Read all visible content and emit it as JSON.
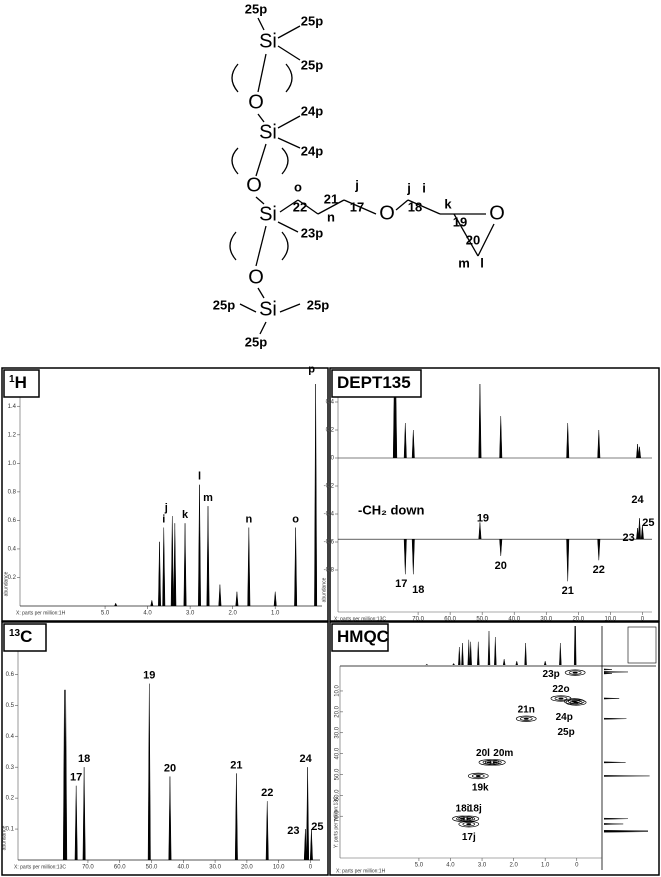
{
  "structure": {
    "labels": [
      "25p",
      "Si",
      "25p",
      "25p",
      "O",
      "Si",
      "24p",
      "24p",
      "O",
      "Si",
      "23p",
      "o",
      "22",
      "21",
      "n",
      "j",
      "17",
      "O",
      "j",
      "i",
      "18",
      "k",
      "19",
      "O",
      "20",
      "m",
      "l",
      "O",
      "Si",
      "25p",
      "25p",
      "25p"
    ]
  },
  "panels": {
    "h1": {
      "type": "spectrum",
      "title_sup": "1",
      "title": "H",
      "x_label": "X: parts per million:1H",
      "y_label": "abundance",
      "xlim": [
        7.0,
        -0.1
      ],
      "ylim": [
        0,
        1.5
      ],
      "xticks": [
        {
          "value": 5,
          "label": "5.0"
        },
        {
          "value": 4,
          "label": "4.0"
        },
        {
          "value": 3,
          "label": "3.0"
        },
        {
          "value": 2,
          "label": "2.0"
        },
        {
          "value": 1,
          "label": "1.0"
        }
      ],
      "yticks": [
        0.2,
        0.4,
        0.6,
        0.8,
        {
          "value": 1,
          "label": "1.0"
        },
        1.2,
        1.4
      ],
      "traces": [
        {
          "baseline": 0,
          "peaks": [
            {
              "ppm": 4.75,
              "height": 0.02
            },
            {
              "ppm": 3.9,
              "height": 0.04
            },
            {
              "ppm": 3.72,
              "height": 0.45
            },
            {
              "ppm": 3.62,
              "height": 0.55,
              "label": "i"
            },
            {
              "ppm": 3.42,
              "height": 0.63,
              "label": "j"
            },
            {
              "ppm": 3.36,
              "height": 0.58
            },
            {
              "ppm": 3.12,
              "height": 0.58,
              "label": "k"
            },
            {
              "ppm": 2.78,
              "height": 0.85,
              "label": "l"
            },
            {
              "ppm": 2.58,
              "height": 0.7,
              "label": "m"
            },
            {
              "ppm": 2.3,
              "height": 0.15
            },
            {
              "ppm": 1.9,
              "height": 0.1
            },
            {
              "ppm": 1.62,
              "height": 0.55,
              "label": "n"
            },
            {
              "ppm": 1.0,
              "height": 0.1
            },
            {
              "ppm": 0.52,
              "height": 0.55,
              "label": "o"
            },
            {
              "ppm": 0.05,
              "height": 1.6,
              "label": "p"
            }
          ]
        }
      ]
    },
    "dept": {
      "type": "spectrum",
      "title": "DEPT135",
      "x_label": "X: parts per million:13C",
      "y_label": "abundance",
      "annotation": "-CH₂ down",
      "xlim": [
        95,
        -3
      ],
      "ylim": [
        -1.1,
        0.5
      ],
      "xticks": [
        {
          "value": 70,
          "label": "70.0"
        },
        {
          "value": 60,
          "label": "60.0"
        },
        {
          "value": 50,
          "label": "50.0"
        },
        {
          "value": 40,
          "label": "40.0"
        },
        {
          "value": 30,
          "label": "30.0"
        },
        {
          "value": 20,
          "label": "20.0"
        },
        {
          "value": 10,
          "label": "10.0"
        },
        0
      ],
      "yticks": [
        0.4,
        0.2,
        0,
        -0.2,
        -0.4,
        -0.6,
        -0.8
      ],
      "traces": [
        {
          "baseline": 0,
          "peaks": [
            {
              "ppm": 77.4,
              "height": 0.6
            },
            {
              "ppm": 77.0,
              "height": 0.6
            },
            {
              "ppm": 74.0,
              "height": 0.25
            },
            {
              "ppm": 71.5,
              "height": 0.2
            },
            {
              "ppm": 50.7,
              "height": 0.55
            },
            {
              "ppm": 44.2,
              "height": 0.3
            },
            {
              "ppm": 23.3,
              "height": 0.25
            },
            {
              "ppm": 13.6,
              "height": 0.2
            },
            {
              "ppm": 1.5,
              "height": 0.1
            },
            {
              "ppm": 0.9,
              "height": 0.08
            }
          ]
        },
        {
          "baseline": -0.58,
          "peaks": [
            {
              "ppm": 74.0,
              "height": -0.25,
              "label": "17"
            },
            {
              "ppm": 71.5,
              "height": -0.25,
              "label": "18"
            },
            {
              "ppm": 50.7,
              "height": 0.12,
              "label": "19"
            },
            {
              "ppm": 44.2,
              "height": -0.12,
              "label": "20"
            },
            {
              "ppm": 23.3,
              "height": -0.3,
              "label": "21"
            },
            {
              "ppm": 13.6,
              "height": -0.15,
              "label": "22"
            },
            {
              "ppm": 1.5,
              "height": 0.08,
              "label": "23"
            },
            {
              "ppm": 0.9,
              "height": 0.15,
              "label": "24"
            },
            {
              "ppm": 0.0,
              "height": 0.1,
              "label": "25"
            }
          ]
        }
      ]
    },
    "c13": {
      "type": "spectrum",
      "title_sup": "13",
      "title": "C",
      "x_label": "X: parts per million:13C",
      "y_label": "abundance",
      "xlim": [
        92,
        -3
      ],
      "ylim": [
        0,
        0.75
      ],
      "xticks": [
        {
          "value": 70,
          "label": "70.0"
        },
        {
          "value": 60,
          "label": "60.0"
        },
        {
          "value": 50,
          "label": "50.0"
        },
        {
          "value": 40,
          "label": "40.0"
        },
        {
          "value": 30,
          "label": "30.0"
        },
        {
          "value": 20,
          "label": "20.0"
        },
        {
          "value": 10,
          "label": "10.0"
        },
        0
      ],
      "yticks": [
        0.1,
        0.2,
        0.3,
        0.4,
        0.5,
        0.6,
        0.7
      ],
      "traces": [
        {
          "baseline": 0,
          "peaks": [
            {
              "ppm": 77.4,
              "height": 0.55
            },
            {
              "ppm": 77.0,
              "height": 0.55
            },
            {
              "ppm": 73.7,
              "height": 0.24,
              "label": "17"
            },
            {
              "ppm": 71.2,
              "height": 0.3,
              "label": "18"
            },
            {
              "ppm": 50.7,
              "height": 0.57,
              "label": "19"
            },
            {
              "ppm": 44.2,
              "height": 0.27,
              "label": "20"
            },
            {
              "ppm": 23.3,
              "height": 0.28,
              "label": "21"
            },
            {
              "ppm": 13.6,
              "height": 0.19,
              "label": "22"
            },
            {
              "ppm": 1.6,
              "height": 0.1,
              "label": "23"
            },
            {
              "ppm": 0.9,
              "height": 0.3,
              "label": "24"
            },
            {
              "ppm": -0.3,
              "height": 0.1,
              "label": "25"
            }
          ]
        }
      ]
    },
    "hmqc": {
      "type": "2d",
      "title": "HMQC",
      "x_label": "X: parts per million:1H",
      "y_label": "Y: parts per million:13C",
      "xlim": [
        7.5,
        -0.8
      ],
      "ylim": [
        -1,
        90
      ],
      "xticks": [
        {
          "value": 5,
          "label": "5.0"
        },
        {
          "value": 4,
          "label": "4.0"
        },
        {
          "value": 3,
          "label": "3.0"
        },
        {
          "value": 2,
          "label": "2.0"
        },
        {
          "value": 1,
          "label": "1.0"
        },
        0
      ],
      "yticks": [
        {
          "value": 10,
          "label": "10.0"
        },
        {
          "value": 20,
          "label": "20.0"
        },
        {
          "value": 30,
          "label": "30.0"
        },
        {
          "value": 40,
          "label": "40.0"
        },
        {
          "value": 50,
          "label": "50.0"
        },
        {
          "value": 60,
          "label": "60.0"
        },
        {
          "value": 70,
          "label": "70.0"
        }
      ],
      "cross_peaks": [
        {
          "label": "23p",
          "h": 0.05,
          "c": 1.2
        },
        {
          "label": "22o",
          "h": 0.5,
          "c": 13.6
        },
        {
          "label": "24p",
          "h": 0.08,
          "c": 15
        },
        {
          "label": "25p",
          "h": 0.02,
          "c": 15.5
        },
        {
          "label": "21n",
          "h": 1.6,
          "c": 23.3
        },
        {
          "label": "20l",
          "h": 2.78,
          "c": 44.2
        },
        {
          "label": "20m",
          "h": 2.58,
          "c": 44.2
        },
        {
          "label": "19k",
          "h": 3.12,
          "c": 50.7
        },
        {
          "label": "18i",
          "h": 3.62,
          "c": 71.2
        },
        {
          "label": "18j",
          "h": 3.42,
          "c": 71.2
        },
        {
          "label": "17j",
          "h": 3.42,
          "c": 73.8
        }
      ]
    }
  }
}
